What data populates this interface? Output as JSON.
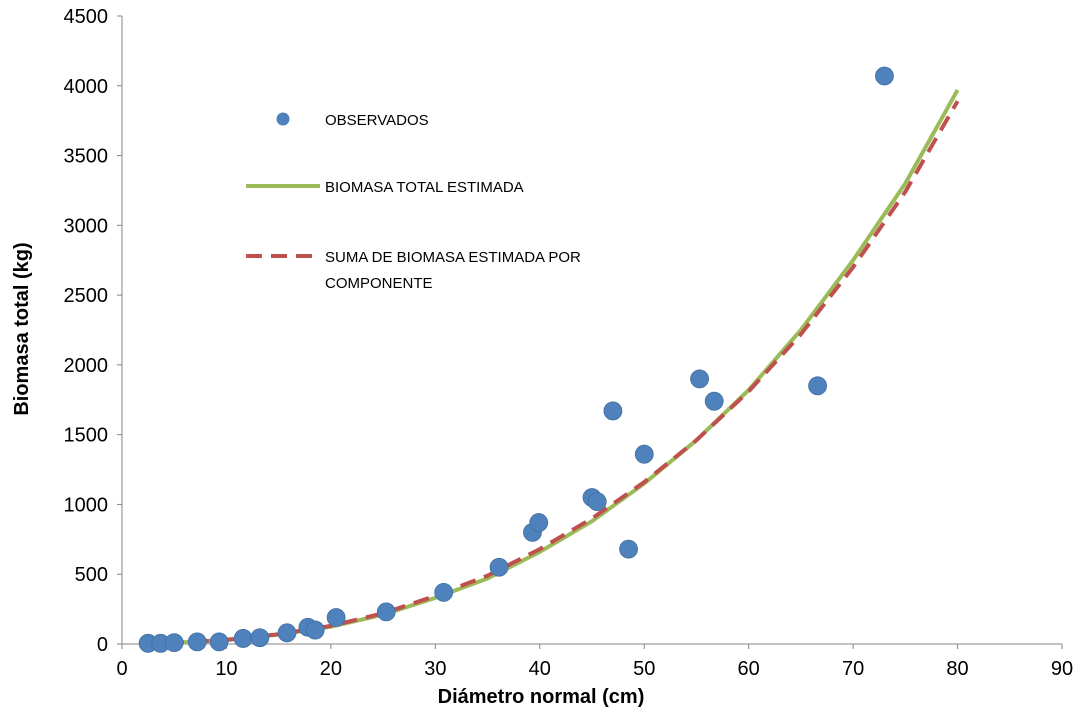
{
  "chart_data": {
    "type": "scatter",
    "title": "",
    "xlabel": "Diámetro normal (cm)",
    "ylabel": "Biomasa total (kg)",
    "xlim": [
      0,
      90
    ],
    "ylim": [
      0,
      4500
    ],
    "x_ticks": [
      "0",
      "10",
      "20",
      "30",
      "40",
      "50",
      "60",
      "70",
      "80",
      "90"
    ],
    "y_ticks": [
      "0",
      "500",
      "1000",
      "1500",
      "2000",
      "2500",
      "3000",
      "3500",
      "4000",
      "4500"
    ],
    "grid": false,
    "legend_position": "upper-left inside plot",
    "series": [
      {
        "name": "OBSERVADOS",
        "kind": "markers",
        "color": "#4F81BD",
        "points": [
          [
            2.5,
            5
          ],
          [
            3.7,
            5
          ],
          [
            5.0,
            10
          ],
          [
            7.2,
            15
          ],
          [
            9.3,
            15
          ],
          [
            11.6,
            40
          ],
          [
            13.2,
            45
          ],
          [
            15.8,
            80
          ],
          [
            17.8,
            120
          ],
          [
            18.5,
            100
          ],
          [
            20.5,
            190
          ],
          [
            25.3,
            230
          ],
          [
            30.8,
            370
          ],
          [
            36.1,
            550
          ],
          [
            39.3,
            800
          ],
          [
            39.9,
            870
          ],
          [
            45.0,
            1050
          ],
          [
            45.5,
            1020
          ],
          [
            47.0,
            1670
          ],
          [
            48.5,
            680
          ],
          [
            50.0,
            1360
          ],
          [
            55.3,
            1900
          ],
          [
            56.7,
            1740
          ],
          [
            66.6,
            1850
          ],
          [
            73.0,
            4070
          ]
        ]
      },
      {
        "name": "BIOMASA TOTAL ESTIMADA",
        "kind": "line",
        "color": "#9BBB59",
        "points": [
          [
            2,
            2
          ],
          [
            5,
            9
          ],
          [
            10,
            28
          ],
          [
            15,
            67
          ],
          [
            20,
            125
          ],
          [
            25,
            210
          ],
          [
            30,
            330
          ],
          [
            35,
            470
          ],
          [
            40,
            660
          ],
          [
            45,
            880
          ],
          [
            50,
            1150
          ],
          [
            55,
            1460
          ],
          [
            60,
            1820
          ],
          [
            65,
            2250
          ],
          [
            70,
            2750
          ],
          [
            75,
            3300
          ],
          [
            80,
            3970
          ]
        ]
      },
      {
        "name": "SUMA DE BIOMASA ESTIMADA POR COMPONENTE",
        "kind": "dashed-line",
        "color": "#C0504D",
        "points": [
          [
            2,
            2
          ],
          [
            5,
            9
          ],
          [
            10,
            30
          ],
          [
            15,
            70
          ],
          [
            20,
            130
          ],
          [
            25,
            220
          ],
          [
            30,
            345
          ],
          [
            35,
            490
          ],
          [
            40,
            680
          ],
          [
            45,
            900
          ],
          [
            50,
            1160
          ],
          [
            55,
            1460
          ],
          [
            60,
            1810
          ],
          [
            65,
            2220
          ],
          [
            70,
            2700
          ],
          [
            75,
            3240
          ],
          [
            80,
            3890
          ]
        ]
      }
    ],
    "legend": [
      {
        "label_lines": [
          "OBSERVADOS"
        ],
        "kind": "marker",
        "color": "#4F81BD"
      },
      {
        "label_lines": [
          "BIOMASA TOTAL ESTIMADA"
        ],
        "kind": "line",
        "color": "#9BBB59"
      },
      {
        "label_lines": [
          "SUMA DE BIOMASA ESTIMADA POR",
          "COMPONENTE"
        ],
        "kind": "dashed-line",
        "color": "#C0504D"
      }
    ]
  }
}
